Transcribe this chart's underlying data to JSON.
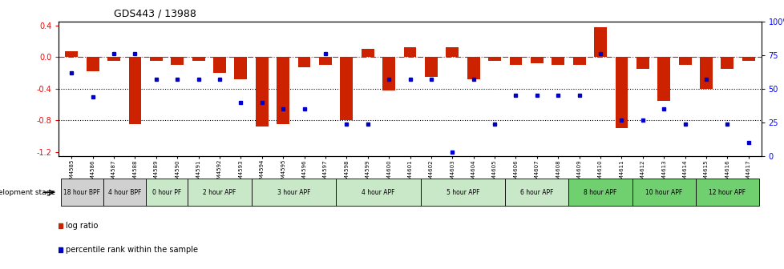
{
  "title": "GDS443 / 13988",
  "samples": [
    "GSM4585",
    "GSM4586",
    "GSM4587",
    "GSM4588",
    "GSM4589",
    "GSM4590",
    "GSM4591",
    "GSM4592",
    "GSM4593",
    "GSM4594",
    "GSM4595",
    "GSM4596",
    "GSM4597",
    "GSM4598",
    "GSM4599",
    "GSM4600",
    "GSM4601",
    "GSM4602",
    "GSM4603",
    "GSM4604",
    "GSM4605",
    "GSM4606",
    "GSM4607",
    "GSM4608",
    "GSM4609",
    "GSM4610",
    "GSM4611",
    "GSM4612",
    "GSM4613",
    "GSM4614",
    "GSM4615",
    "GSM4616",
    "GSM4617"
  ],
  "log_ratios": [
    0.07,
    -0.18,
    -0.05,
    -0.85,
    -0.05,
    -0.1,
    -0.05,
    -0.2,
    -0.28,
    -0.88,
    -0.85,
    -0.13,
    -0.1,
    -0.8,
    0.1,
    -0.42,
    0.12,
    -0.25,
    0.13,
    -0.28,
    -0.05,
    -0.1,
    -0.08,
    -0.1,
    -0.1,
    0.38,
    -0.9,
    -0.15,
    -0.55,
    -0.1,
    -0.4,
    -0.15,
    -0.05
  ],
  "percentile_ranks": [
    62,
    44,
    76,
    76,
    57,
    57,
    57,
    57,
    40,
    40,
    35,
    35,
    76,
    24,
    24,
    57,
    57,
    57,
    3,
    57,
    24,
    45,
    45,
    45,
    45,
    76,
    27,
    27,
    35,
    24,
    57,
    24,
    10
  ],
  "groups": [
    {
      "label": "18 hour BPF",
      "start": 0,
      "end": 1,
      "color": "#d0d0d0"
    },
    {
      "label": "4 hour BPF",
      "start": 2,
      "end": 3,
      "color": "#d0d0d0"
    },
    {
      "label": "0 hour PF",
      "start": 4,
      "end": 5,
      "color": "#c8e8c8"
    },
    {
      "label": "2 hour APF",
      "start": 6,
      "end": 8,
      "color": "#c8e8c8"
    },
    {
      "label": "3 hour APF",
      "start": 9,
      "end": 12,
      "color": "#c8e8c8"
    },
    {
      "label": "4 hour APF",
      "start": 13,
      "end": 16,
      "color": "#c8e8c8"
    },
    {
      "label": "5 hour APF",
      "start": 17,
      "end": 20,
      "color": "#c8e8c8"
    },
    {
      "label": "6 hour APF",
      "start": 21,
      "end": 23,
      "color": "#c8e8c8"
    },
    {
      "label": "8 hour APF",
      "start": 24,
      "end": 26,
      "color": "#70d070"
    },
    {
      "label": "10 hour APF",
      "start": 27,
      "end": 29,
      "color": "#70d070"
    },
    {
      "label": "12 hour APF",
      "start": 30,
      "end": 32,
      "color": "#70d070"
    }
  ],
  "bar_color": "#cc2200",
  "dot_color": "#0000cc",
  "ylim_left": [
    -1.25,
    0.45
  ],
  "ylim_right": [
    0,
    100
  ],
  "yticks_left": [
    -1.2,
    -0.8,
    -0.4,
    0.0,
    0.4
  ],
  "yticks_right": [
    0,
    25,
    50,
    75,
    100
  ],
  "dotted_lines": [
    -0.4,
    -0.8
  ]
}
